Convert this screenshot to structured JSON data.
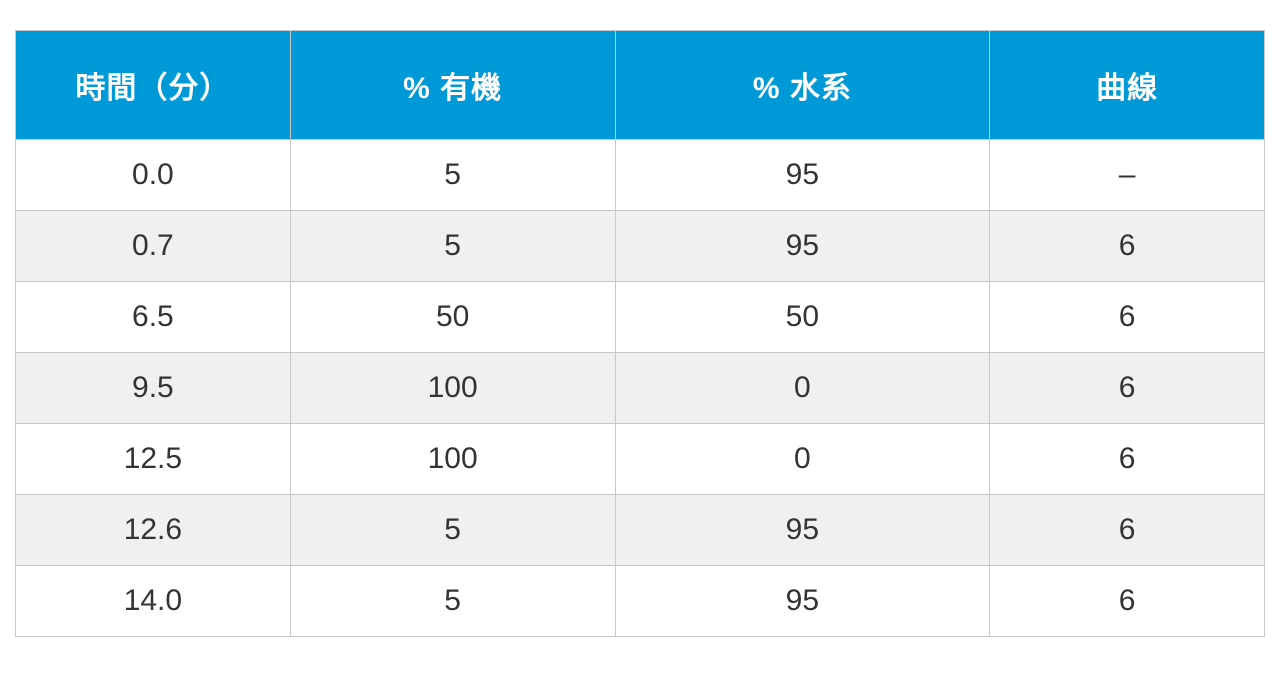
{
  "table": {
    "type": "table",
    "header_bg": "#0099d8",
    "header_fg": "#ffffff",
    "row_bg_odd": "#ffffff",
    "row_bg_even": "#f0f0f0",
    "border_color": "#c8c8c8",
    "cell_fg": "#333333",
    "header_fontsize": 30,
    "cell_fontsize": 30,
    "column_widths_pct": [
      22,
      26,
      30,
      22
    ],
    "columns": [
      "時間（分）",
      "% 有機",
      "% 水系",
      "曲線"
    ],
    "rows": [
      [
        "0.0",
        "5",
        "95",
        "‒"
      ],
      [
        "0.7",
        "5",
        "95",
        "6"
      ],
      [
        "6.5",
        "50",
        "50",
        "6"
      ],
      [
        "9.5",
        "100",
        "0",
        "6"
      ],
      [
        "12.5",
        "100",
        "0",
        "6"
      ],
      [
        "12.6",
        "5",
        "95",
        "6"
      ],
      [
        "14.0",
        "5",
        "95",
        "6"
      ]
    ]
  }
}
